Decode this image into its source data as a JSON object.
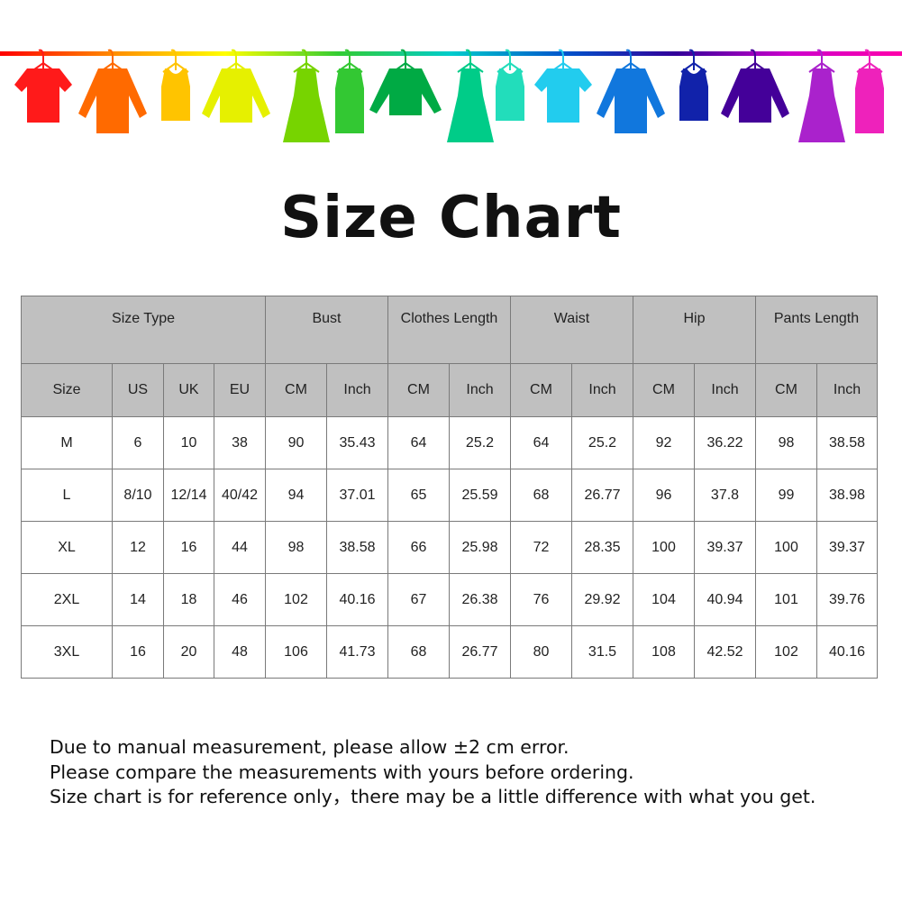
{
  "banner": {
    "rod_gradient": [
      "#ff0000",
      "#ff8c00",
      "#ffff00",
      "#33cc33",
      "#00cccc",
      "#0055cc",
      "#330099",
      "#cc00cc",
      "#ff00aa"
    ],
    "garments": [
      {
        "type": "tshirt",
        "color": "#ff1a1a"
      },
      {
        "type": "shirt",
        "color": "#ff6a00"
      },
      {
        "type": "tank",
        "color": "#ffc400"
      },
      {
        "type": "cardigan",
        "color": "#e6f000"
      },
      {
        "type": "dress",
        "color": "#77d400"
      },
      {
        "type": "tankdress",
        "color": "#33c833"
      },
      {
        "type": "sweater",
        "color": "#00aa44"
      },
      {
        "type": "dress",
        "color": "#00cc88"
      },
      {
        "type": "tank",
        "color": "#22ddbb"
      },
      {
        "type": "tshirt",
        "color": "#22ccee"
      },
      {
        "type": "shirt",
        "color": "#1177dd"
      },
      {
        "type": "tank",
        "color": "#1122aa"
      },
      {
        "type": "cardigan",
        "color": "#440099"
      },
      {
        "type": "dress",
        "color": "#aa22cc"
      },
      {
        "type": "tankdress",
        "color": "#ee22bb"
      }
    ]
  },
  "title": "Size Chart",
  "table": {
    "group_headers": [
      "Size Type",
      "Bust",
      "Clothes Length",
      "Waist",
      "Hip",
      "Pants Length"
    ],
    "sub_headers": [
      "Size",
      "US",
      "UK",
      "EU",
      "CM",
      "Inch",
      "CM",
      "Inch",
      "CM",
      "Inch",
      "CM",
      "Inch",
      "CM",
      "Inch"
    ],
    "rows": [
      [
        "M",
        "6",
        "10",
        "38",
        "90",
        "35.43",
        "64",
        "25.2",
        "64",
        "25.2",
        "92",
        "36.22",
        "98",
        "38.58"
      ],
      [
        "L",
        "8/10",
        "12/14",
        "40/42",
        "94",
        "37.01",
        "65",
        "25.59",
        "68",
        "26.77",
        "96",
        "37.8",
        "99",
        "38.98"
      ],
      [
        "XL",
        "12",
        "16",
        "44",
        "98",
        "38.58",
        "66",
        "25.98",
        "72",
        "28.35",
        "100",
        "39.37",
        "100",
        "39.37"
      ],
      [
        "2XL",
        "14",
        "18",
        "46",
        "102",
        "40.16",
        "67",
        "26.38",
        "76",
        "29.92",
        "104",
        "40.94",
        "101",
        "39.76"
      ],
      [
        "3XL",
        "16",
        "20",
        "48",
        "106",
        "41.73",
        "68",
        "26.77",
        "80",
        "31.5",
        "108",
        "42.52",
        "102",
        "40.16"
      ]
    ]
  },
  "notes": [
    "Due to manual measurement, please allow ±2 cm error.",
    "Please compare the measurements with yours before ordering.",
    "Size chart is for reference only，there may be a little difference with what you get."
  ]
}
